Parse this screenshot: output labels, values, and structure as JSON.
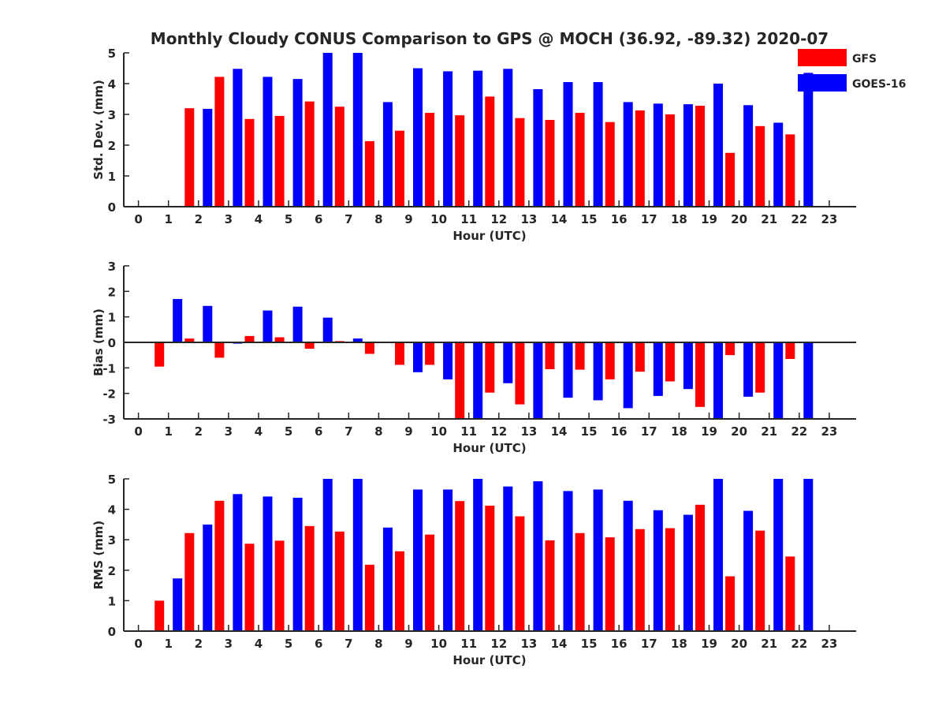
{
  "title": "Monthly Cloudy CONUS Comparison to GPS @ MOCH (36.92, -89.32) 2020-07",
  "legend": {
    "placement": "top-right",
    "entries": [
      {
        "label": "GFS",
        "color": "#ff0000"
      },
      {
        "label": "GOES-16",
        "color": "#0000ff"
      }
    ]
  },
  "chart_data": [
    {
      "type": "bar",
      "ylabel": "Std. Dev. (mm)",
      "xlabel": "Hour (UTC)",
      "ylim": [
        0,
        5
      ],
      "yticks": [
        "0",
        "1",
        "2",
        "3",
        "4",
        "5"
      ],
      "categories": [
        "0",
        "1",
        "2",
        "3",
        "4",
        "5",
        "6",
        "7",
        "8",
        "9",
        "10",
        "11",
        "12",
        "13",
        "14",
        "15",
        "16",
        "17",
        "18",
        "19",
        "20",
        "21",
        "22",
        "23"
      ],
      "series": [
        {
          "name": "GFS",
          "color": "#ff0000",
          "values": [
            null,
            null,
            3.2,
            4.22,
            2.85,
            2.95,
            3.42,
            3.25,
            2.13,
            2.47,
            3.05,
            2.97,
            3.58,
            2.88,
            2.82,
            3.05,
            2.75,
            3.13,
            3.0,
            3.28,
            1.75,
            2.62,
            2.35,
            null
          ]
        },
        {
          "name": "GOES-16",
          "color": "#0000ff",
          "values": [
            null,
            null,
            3.18,
            4.48,
            4.22,
            4.15,
            5.0,
            5.0,
            3.4,
            4.5,
            4.4,
            4.42,
            4.48,
            3.82,
            4.05,
            4.05,
            3.4,
            3.35,
            3.33,
            4.0,
            3.3,
            2.73,
            4.35,
            null
          ]
        }
      ]
    },
    {
      "type": "bar",
      "ylabel": "Bias (mm)",
      "xlabel": "Hour (UTC)",
      "ylim": [
        -3,
        3
      ],
      "yticks": [
        "-3",
        "-2",
        "-1",
        "0",
        "1",
        "2",
        "3"
      ],
      "categories": [
        "0",
        "1",
        "2",
        "3",
        "4",
        "5",
        "6",
        "7",
        "8",
        "9",
        "10",
        "11",
        "12",
        "13",
        "14",
        "15",
        "16",
        "17",
        "18",
        "19",
        "20",
        "21",
        "22",
        "23"
      ],
      "series": [
        {
          "name": "GFS",
          "color": "#ff0000",
          "values": [
            null,
            -0.95,
            0.15,
            -0.6,
            0.25,
            0.2,
            -0.25,
            0.05,
            -0.45,
            -0.88,
            -0.88,
            -3.0,
            -1.97,
            -2.43,
            -1.05,
            -1.07,
            -1.45,
            -1.15,
            -1.53,
            -2.53,
            -0.5,
            -1.97,
            -0.65,
            null
          ]
        },
        {
          "name": "GOES-16",
          "color": "#0000ff",
          "values": [
            null,
            1.7,
            1.43,
            -0.05,
            1.25,
            1.4,
            0.97,
            0.15,
            0.03,
            -1.17,
            -1.45,
            -3.0,
            -1.6,
            -3.0,
            -2.17,
            -2.27,
            -2.58,
            -2.1,
            -1.83,
            -3.0,
            -2.13,
            -3.0,
            -3.0,
            null
          ]
        }
      ]
    },
    {
      "type": "bar",
      "ylabel": "RMS (mm)",
      "xlabel": "Hour (UTC)",
      "ylim": [
        0,
        5
      ],
      "yticks": [
        "0",
        "1",
        "2",
        "3",
        "4",
        "5"
      ],
      "categories": [
        "0",
        "1",
        "2",
        "3",
        "4",
        "5",
        "6",
        "7",
        "8",
        "9",
        "10",
        "11",
        "12",
        "13",
        "14",
        "15",
        "16",
        "17",
        "18",
        "19",
        "20",
        "21",
        "22",
        "23"
      ],
      "series": [
        {
          "name": "GFS",
          "color": "#ff0000",
          "values": [
            null,
            1.0,
            3.22,
            4.28,
            2.87,
            2.97,
            3.45,
            3.27,
            2.18,
            2.62,
            3.17,
            4.27,
            4.12,
            3.77,
            2.98,
            3.22,
            3.08,
            3.35,
            3.38,
            4.15,
            1.8,
            3.3,
            2.45,
            null
          ]
        },
        {
          "name": "GOES-16",
          "color": "#0000ff",
          "values": [
            null,
            1.73,
            3.5,
            4.5,
            4.42,
            4.38,
            5.0,
            5.0,
            3.4,
            4.65,
            4.65,
            5.0,
            4.75,
            4.92,
            4.6,
            4.65,
            4.28,
            3.97,
            3.82,
            5.0,
            3.95,
            5.0,
            5.0,
            null
          ]
        }
      ]
    }
  ]
}
